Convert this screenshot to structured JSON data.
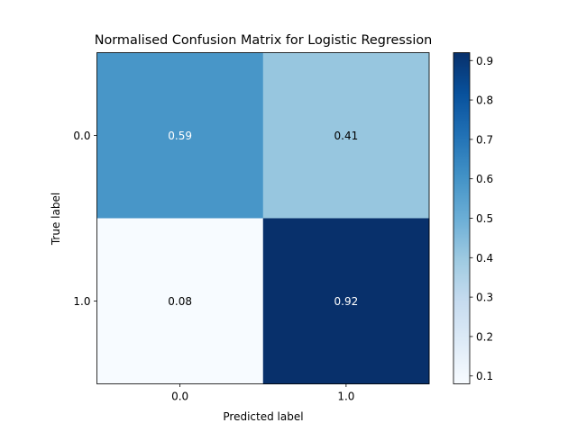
{
  "chart_data": {
    "type": "heatmap",
    "title": "Normalised Confusion Matrix for Logistic Regression",
    "xlabel": "Predicted label",
    "ylabel": "True label",
    "x_categories": [
      "0.0",
      "1.0"
    ],
    "y_categories": [
      "0.0",
      "1.0"
    ],
    "values": [
      [
        0.59,
        0.41
      ],
      [
        0.08,
        0.92
      ]
    ],
    "cell_labels": [
      [
        "0.59",
        "0.41"
      ],
      [
        "0.08",
        "0.92"
      ]
    ],
    "colormap": "Blues",
    "colorbar": {
      "range": [
        0.08,
        0.92
      ],
      "ticks": [
        0.1,
        0.2,
        0.3,
        0.4,
        0.5,
        0.6,
        0.7,
        0.8,
        0.9
      ],
      "tick_labels": [
        "0.1",
        "0.2",
        "0.3",
        "0.4",
        "0.5",
        "0.6",
        "0.7",
        "0.8",
        "0.9"
      ]
    },
    "grid": false
  }
}
